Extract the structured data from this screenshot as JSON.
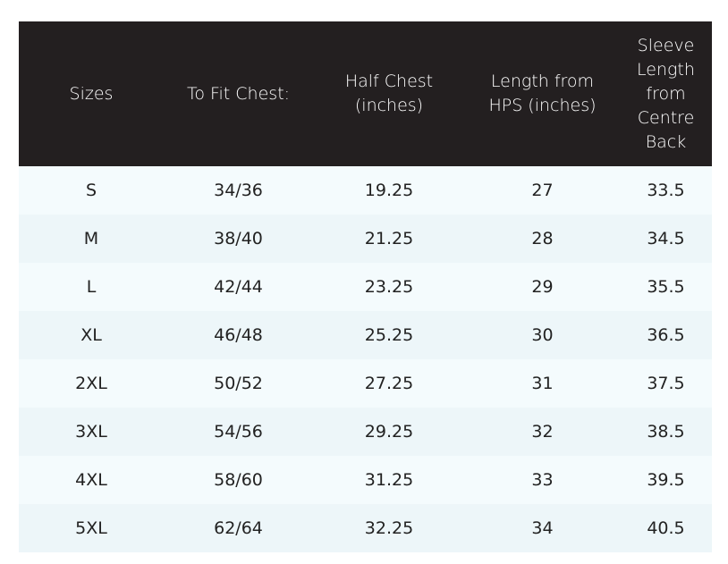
{
  "table": {
    "header": [
      [
        "Sizes"
      ],
      [
        "To Fit Chest:"
      ],
      [
        "Half Chest",
        "(inches)"
      ],
      [
        "Length from",
        "HPS (inches)"
      ],
      [
        "Sleeve",
        "Length",
        "from",
        "Centre",
        "Back"
      ]
    ],
    "rows": [
      [
        "S",
        "34/36",
        "19.25",
        "27",
        "33.5"
      ],
      [
        "M",
        "38/40",
        "21.25",
        "28",
        "34.5"
      ],
      [
        "L",
        "42/44",
        "23.25",
        "29",
        "35.5"
      ],
      [
        "XL",
        "46/48",
        "25.25",
        "30",
        "36.5"
      ],
      [
        "2XL",
        "50/52",
        "27.25",
        "31",
        "37.5"
      ],
      [
        "3XL",
        "54/56",
        "29.25",
        "32",
        "38.5"
      ],
      [
        "4XL",
        "58/60",
        "31.25",
        "33",
        "39.5"
      ],
      [
        "5XL",
        "62/64",
        "32.25",
        "34",
        "40.5"
      ]
    ]
  }
}
